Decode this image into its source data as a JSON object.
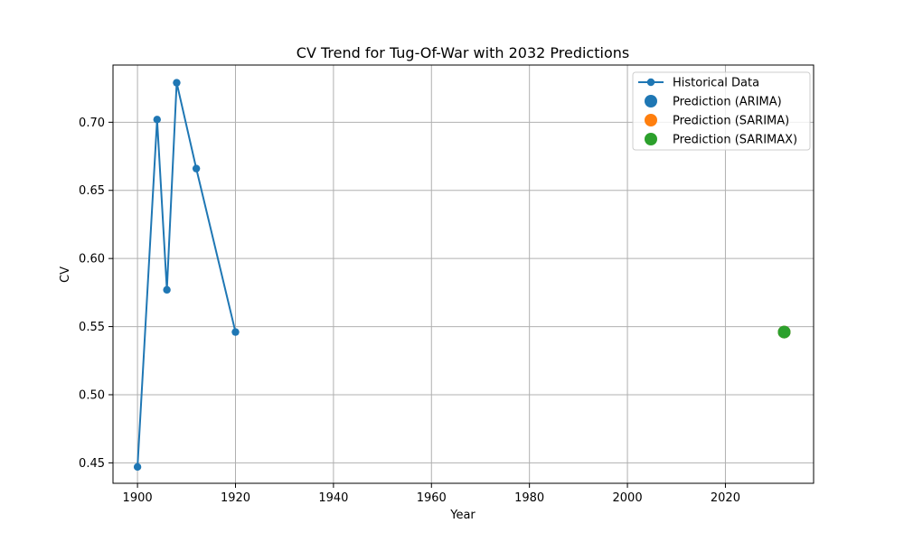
{
  "chart_data": {
    "type": "line",
    "title": "CV Trend for Tug-Of-War with 2032 Predictions",
    "xlabel": "Year",
    "ylabel": "CV",
    "xlim": [
      1895,
      2038
    ],
    "ylim": [
      0.435,
      0.742
    ],
    "x_ticks": [
      1900,
      1920,
      1940,
      1960,
      1980,
      2000,
      2020
    ],
    "y_ticks": [
      0.45,
      0.5,
      0.55,
      0.6,
      0.65,
      0.7
    ],
    "grid": true,
    "legend_position": "top-right",
    "series": [
      {
        "name": "Historical Data",
        "kind": "line-markers",
        "color": "#1f77b4",
        "x": [
          1900,
          1904,
          1906,
          1908,
          1912,
          1920
        ],
        "y": [
          0.447,
          0.702,
          0.577,
          0.729,
          0.666,
          0.546
        ]
      },
      {
        "name": "Prediction (ARIMA)",
        "kind": "point",
        "color": "#1f77b4",
        "x": [
          2032
        ],
        "y": [
          0.546
        ]
      },
      {
        "name": "Prediction (SARIMA)",
        "kind": "point",
        "color": "#ff7f0e",
        "x": [
          2032
        ],
        "y": [
          0.546
        ]
      },
      {
        "name": "Prediction (SARIMAX)",
        "kind": "point",
        "color": "#2ca02c",
        "x": [
          2032
        ],
        "y": [
          0.546
        ]
      }
    ]
  }
}
